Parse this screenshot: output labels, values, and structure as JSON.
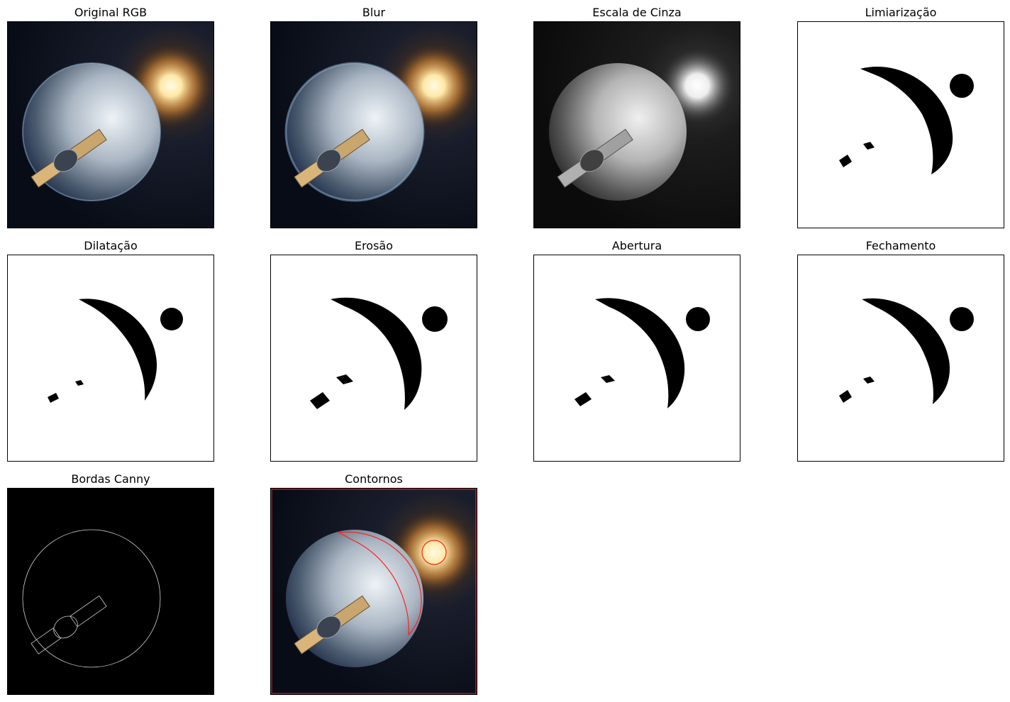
{
  "figure": {
    "panels": [
      {
        "id": "original",
        "title": "Original RGB",
        "kind": "photo"
      },
      {
        "id": "blur",
        "title": "Blur",
        "kind": "photo-blur"
      },
      {
        "id": "gray",
        "title": "Escala de Cinza",
        "kind": "photo-gray"
      },
      {
        "id": "threshold",
        "title": "Limiarização",
        "kind": "mask"
      },
      {
        "id": "dilation",
        "title": "Dilatação",
        "kind": "mask-thin"
      },
      {
        "id": "erosion",
        "title": "Erosão",
        "kind": "mask-thick"
      },
      {
        "id": "opening",
        "title": "Abertura",
        "kind": "mask-thick"
      },
      {
        "id": "closing",
        "title": "Fechamento",
        "kind": "mask"
      },
      {
        "id": "canny",
        "title": "Bordas Canny",
        "kind": "edges"
      },
      {
        "id": "contours",
        "title": "Contornos",
        "kind": "contours"
      }
    ],
    "colors": {
      "space": "#0b1220",
      "moon_light": "#dfe6ee",
      "moon_dark": "#2c3a4e",
      "sun": "#fff4c8",
      "sun_glow": "#f2a94a",
      "contour": "#ff2020",
      "mask_fg": "#000000",
      "mask_bg": "#ffffff"
    }
  }
}
